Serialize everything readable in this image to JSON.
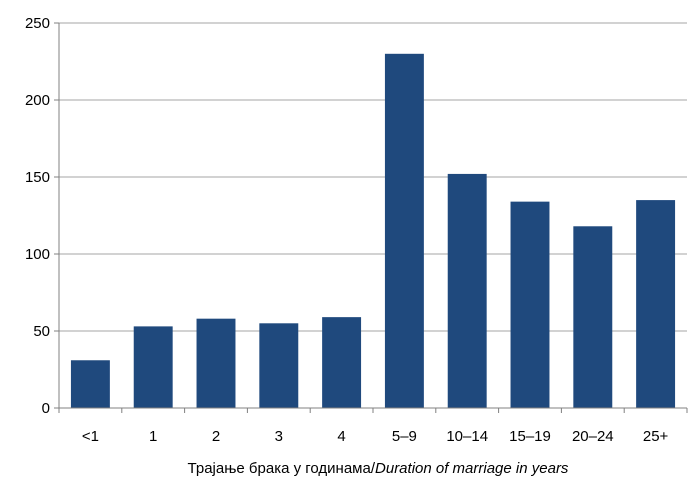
{
  "chart_data": {
    "type": "bar",
    "categories": [
      "<1",
      "1",
      "2",
      "3",
      "4",
      "5–9",
      "10–14",
      "15–19",
      "20–24",
      "25+"
    ],
    "values": [
      31,
      53,
      58,
      55,
      59,
      230,
      152,
      134,
      118,
      135
    ],
    "title": "",
    "xlabel": {
      "regular": "Трајање брака у годинама/",
      "italic": "Duration of marriage in years"
    },
    "ylabel": "",
    "ylim": [
      0,
      250
    ],
    "yticks": [
      "0",
      "50",
      "100",
      "150",
      "200",
      "250"
    ],
    "grid": true,
    "legend": "none",
    "colors": {
      "bar": "#1F497D",
      "grid": "#A6A6A6",
      "axis": "#808080"
    }
  }
}
